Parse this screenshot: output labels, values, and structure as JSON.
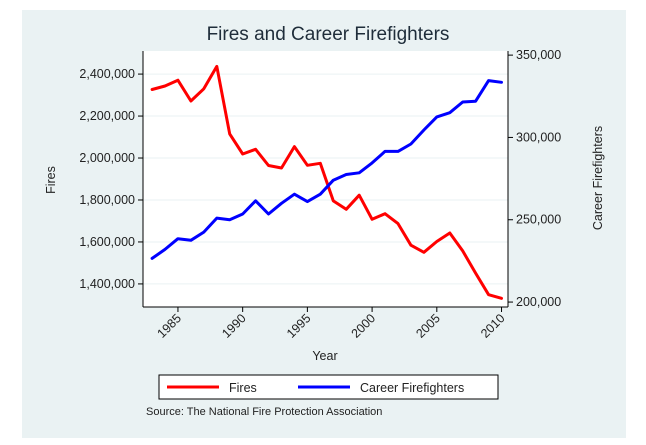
{
  "chart_data": {
    "type": "line",
    "title": "Fires and Career Firefighters",
    "xlabel": "Year",
    "ylabel_left": "Fires",
    "ylabel_right": "Career Firefighters",
    "source": "Source: The National Fire Protection Association",
    "x": [
      1983,
      1984,
      1985,
      1986,
      1987,
      1988,
      1989,
      1990,
      1991,
      1992,
      1993,
      1994,
      1995,
      1996,
      1997,
      1998,
      1999,
      2000,
      2001,
      2002,
      2003,
      2004,
      2005,
      2006,
      2007,
      2008,
      2009,
      2010
    ],
    "x_ticks": [
      1985,
      1990,
      1995,
      2000,
      2005,
      2010
    ],
    "x_tick_labels": [
      "1985",
      "1990",
      "1995",
      "2000",
      "2005",
      "2010"
    ],
    "xlim": [
      1982.3,
      2010.5
    ],
    "y_left_lim": [
      1290000,
      2510000
    ],
    "y_left_ticks": [
      1400000,
      1600000,
      1800000,
      2000000,
      2200000,
      2400000
    ],
    "y_left_tick_labels": [
      "1,400,000",
      "1,600,000",
      "1,800,000",
      "2,000,000",
      "2,200,000",
      "2,400,000"
    ],
    "y_right_lim": [
      197000,
      352500
    ],
    "y_right_ticks": [
      200000,
      250000,
      300000,
      350000
    ],
    "y_right_tick_labels": [
      "200,000",
      "250,000",
      "300,000",
      "350,000"
    ],
    "grid": true,
    "legend_position": "bottom",
    "series": [
      {
        "name": "Fires",
        "axis": "left",
        "color": "#ff0000",
        "values": [
          2326500,
          2343000,
          2371000,
          2271500,
          2330000,
          2436500,
          2115000,
          2019000,
          2041500,
          1964500,
          1952500,
          2054500,
          1965500,
          1975000,
          1795500,
          1755500,
          1823000,
          1708000,
          1734500,
          1687500,
          1584500,
          1550500,
          1602000,
          1642500,
          1557500,
          1451500,
          1348500,
          1331500
        ]
      },
      {
        "name": "Career Firefighters",
        "axis": "right",
        "color": "#0000ff",
        "values": [
          226500,
          232000,
          238500,
          237500,
          242500,
          251000,
          250000,
          253500,
          261500,
          253500,
          260000,
          265500,
          261000,
          265500,
          274000,
          277500,
          278500,
          284500,
          291500,
          291500,
          296000,
          304500,
          312500,
          315000,
          321500,
          322000,
          334500,
          333500
        ]
      }
    ]
  }
}
